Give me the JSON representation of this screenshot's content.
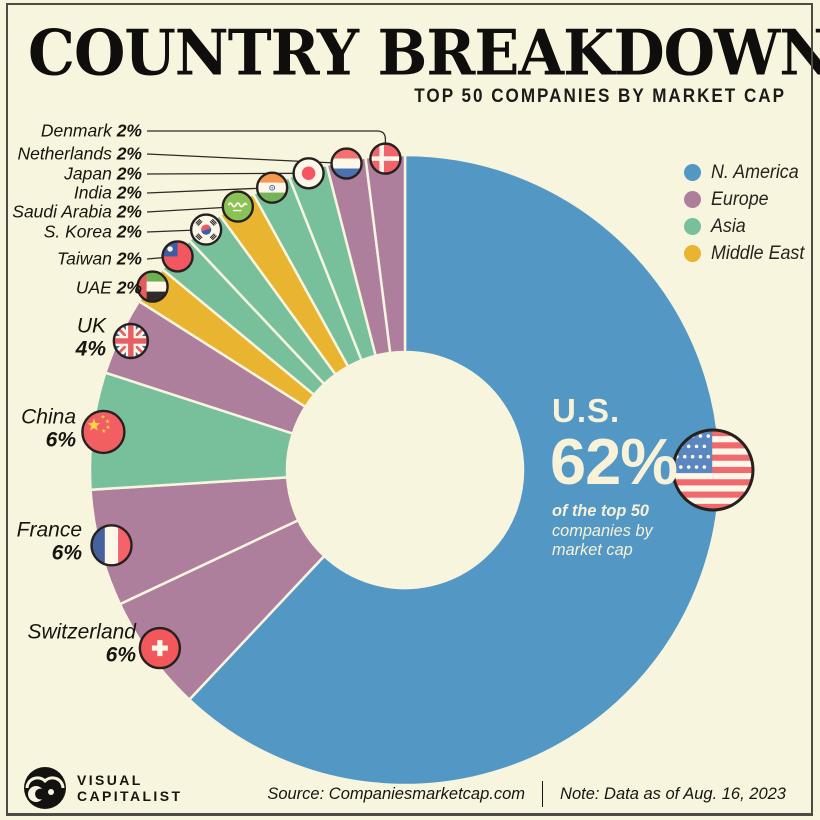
{
  "page": {
    "background_color": "#f8f5df",
    "frame_color": "#4e4a45"
  },
  "header": {
    "title": "COUNTRY BREAKDOWN",
    "subtitle": "TOP 50 COMPANIES BY MARKET CAP"
  },
  "chart_data": {
    "type": "pie",
    "style": "donut",
    "title": "COUNTRY BREAKDOWN",
    "subtitle": "TOP 50 COMPANIES BY MARKET CAP",
    "unit": "%",
    "slices": [
      {
        "label": "U.S.",
        "value": 62,
        "region": "N. America"
      },
      {
        "label": "Switzerland",
        "value": 6,
        "region": "Europe"
      },
      {
        "label": "France",
        "value": 6,
        "region": "Europe"
      },
      {
        "label": "China",
        "value": 6,
        "region": "Asia"
      },
      {
        "label": "UK",
        "value": 4,
        "region": "Europe"
      },
      {
        "label": "UAE",
        "value": 2,
        "region": "Middle East"
      },
      {
        "label": "Taiwan",
        "value": 2,
        "region": "Asia"
      },
      {
        "label": "S. Korea",
        "value": 2,
        "region": "Asia"
      },
      {
        "label": "Saudi Arabia",
        "value": 2,
        "region": "Middle East"
      },
      {
        "label": "India",
        "value": 2,
        "region": "Asia"
      },
      {
        "label": "Japan",
        "value": 2,
        "region": "Asia"
      },
      {
        "label": "Netherlands",
        "value": 2,
        "region": "Europe"
      },
      {
        "label": "Denmark",
        "value": 2,
        "region": "Europe"
      }
    ],
    "region_colors": {
      "N. America": "#5397c5",
      "Europe": "#ae7e9d",
      "Asia": "#78c09b",
      "Middle East": "#e9b42f"
    },
    "legend": {
      "position": "top-right",
      "entries": [
        "N. America",
        "Europe",
        "Asia",
        "Middle East"
      ]
    },
    "center_callout": {
      "country": "U.S.",
      "value": "62%",
      "caption_lines": [
        "of the top 50",
        "companies by",
        "market cap"
      ]
    }
  },
  "footer": {
    "brand_line1": "VISUAL",
    "brand_line2": "CAPITALIST",
    "source": "Source: Companiesmarketcap.com",
    "note": "Note: Data as of Aug. 16, 2023"
  }
}
